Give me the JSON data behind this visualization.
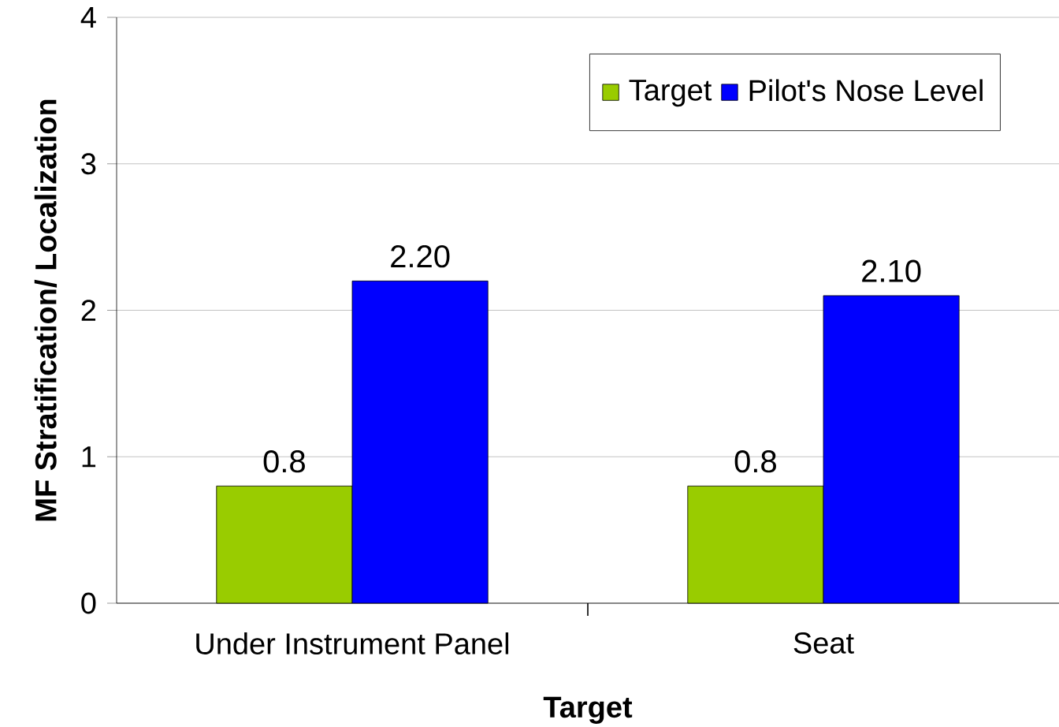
{
  "chart_data": {
    "type": "bar",
    "xlabel": "Target",
    "ylabel": "MF  Stratification/ Localization",
    "categories": [
      "Under Instrument Panel",
      "Seat"
    ],
    "series": [
      {
        "name": "Target",
        "color": "#99cc00",
        "values": [
          0.8,
          0.8
        ],
        "value_labels": [
          "0.8",
          "0.8"
        ]
      },
      {
        "name": "Pilot's Nose Level",
        "color": "#0000ff",
        "values": [
          2.2,
          2.1
        ],
        "value_labels": [
          "2.20",
          "2.10"
        ]
      }
    ],
    "ylim": [
      0,
      4
    ],
    "yticks": [
      0,
      1,
      2,
      3,
      4
    ],
    "grid": "y",
    "legend": "top right"
  }
}
